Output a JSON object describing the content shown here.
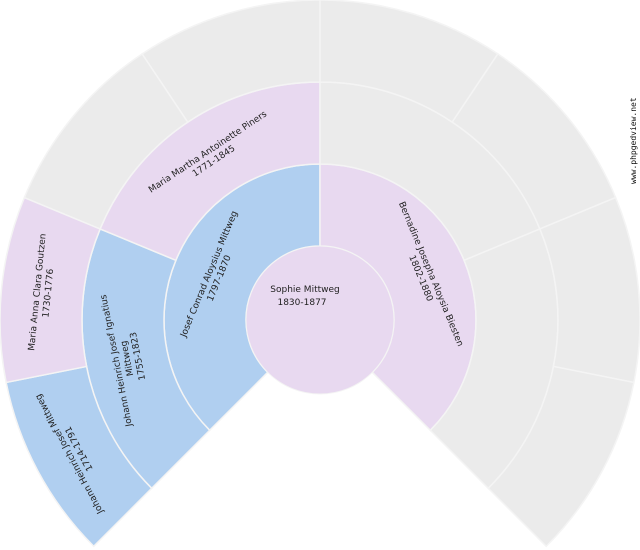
{
  "watermark": "www.phpgedview.net",
  "colors": {
    "male": "#b0cff0",
    "female": "#e8d9f0",
    "empty": "#ebebeb",
    "separator": "#f4f4f4"
  },
  "root": {
    "name": "Sophie Mittweg",
    "years": "1830-1877",
    "gender": "female"
  },
  "generations": [
    {
      "slots": [
        {
          "name_lines": [
            "Josef Conrad Aloysius Mittweg"
          ],
          "years": "1797-1870",
          "gender": "male"
        },
        {
          "name_lines": [
            "Bernadine Josepha Aloysia Biesten"
          ],
          "years": "1802-1880",
          "gender": "female"
        }
      ]
    },
    {
      "slots": [
        {
          "name_lines": [
            "Johann Heinrich Josef Ignatius",
            "Mittweg"
          ],
          "years": "1755-1823",
          "gender": "male"
        },
        {
          "name_lines": [
            "Maria Martha Antoinette Piners"
          ],
          "years": "1771-1845",
          "gender": "female"
        },
        null,
        null
      ]
    },
    {
      "slots": [
        {
          "name_lines": [
            "Johann Heinrich Josef Mittweg"
          ],
          "years": "1714-1791",
          "gender": "male"
        },
        {
          "name_lines": [
            "Maria Anna Clara Goutzen"
          ],
          "years": "1730-1776",
          "gender": "female"
        },
        null,
        null,
        null,
        null,
        null,
        null
      ]
    }
  ]
}
